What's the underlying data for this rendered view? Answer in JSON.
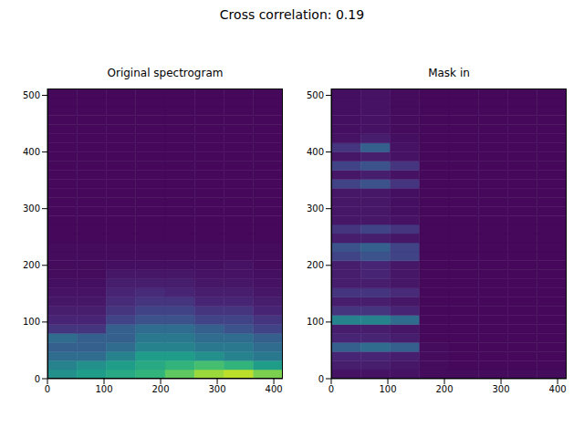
{
  "title": "Cross correlation: 0.19",
  "chart_data": [
    {
      "type": "heatmap",
      "title": "Original spectrogram",
      "xlim": [
        0,
        416
      ],
      "ylim": [
        0,
        512
      ],
      "xticks": [
        0,
        100,
        200,
        300,
        400
      ],
      "yticks": [
        0,
        100,
        200,
        300,
        400,
        500
      ],
      "x_edges": [
        0,
        52,
        104,
        156,
        208,
        260,
        312,
        364,
        416
      ],
      "y_edges": [
        0,
        16,
        32,
        48,
        64,
        80,
        96,
        112,
        128,
        144,
        160,
        176,
        192,
        208,
        224,
        240,
        256,
        272,
        288,
        304,
        320,
        336,
        352,
        368,
        384,
        400,
        416,
        432,
        448,
        464,
        480,
        496,
        512
      ],
      "cells": [
        [
          0.5,
          0.55,
          0.6,
          0.65,
          0.75,
          0.85,
          0.9,
          0.8
        ],
        [
          0.45,
          0.5,
          0.55,
          0.6,
          0.65,
          0.7,
          0.65,
          0.55
        ],
        [
          0.35,
          0.35,
          0.45,
          0.55,
          0.55,
          0.5,
          0.45,
          0.4
        ],
        [
          0.3,
          0.3,
          0.35,
          0.45,
          0.45,
          0.4,
          0.4,
          0.35
        ],
        [
          0.35,
          0.3,
          0.3,
          0.4,
          0.4,
          0.35,
          0.35,
          0.3
        ],
        [
          0.15,
          0.15,
          0.3,
          0.35,
          0.35,
          0.3,
          0.25,
          0.2
        ],
        [
          0.1,
          0.1,
          0.2,
          0.25,
          0.25,
          0.2,
          0.2,
          0.15
        ],
        [
          0.08,
          0.08,
          0.15,
          0.2,
          0.2,
          0.15,
          0.15,
          0.1
        ],
        [
          0.06,
          0.06,
          0.12,
          0.15,
          0.15,
          0.1,
          0.1,
          0.08
        ],
        [
          0.05,
          0.05,
          0.1,
          0.12,
          0.1,
          0.08,
          0.08,
          0.06
        ],
        [
          0.04,
          0.04,
          0.08,
          0.08,
          0.08,
          0.06,
          0.06,
          0.05
        ],
        [
          0.03,
          0.03,
          0.06,
          0.06,
          0.06,
          0.05,
          0.05,
          0.04
        ],
        [
          0.03,
          0.03,
          0.04,
          0.04,
          0.04,
          0.04,
          0.05,
          0.03
        ],
        [
          0.03,
          0.03,
          0.03,
          0.03,
          0.03,
          0.03,
          0.03,
          0.03
        ],
        [
          0.03,
          0.03,
          0.03,
          0.03,
          0.03,
          0.03,
          0.03,
          0.03
        ],
        [
          0.02,
          0.02,
          0.02,
          0.02,
          0.02,
          0.02,
          0.02,
          0.02
        ],
        [
          0.02,
          0.02,
          0.02,
          0.02,
          0.02,
          0.02,
          0.02,
          0.02
        ],
        [
          0.02,
          0.02,
          0.02,
          0.02,
          0.02,
          0.02,
          0.02,
          0.02
        ],
        [
          0.02,
          0.02,
          0.02,
          0.02,
          0.02,
          0.02,
          0.02,
          0.02
        ],
        [
          0.02,
          0.02,
          0.02,
          0.02,
          0.02,
          0.02,
          0.02,
          0.02
        ],
        [
          0.02,
          0.02,
          0.02,
          0.02,
          0.02,
          0.02,
          0.02,
          0.02
        ],
        [
          0.02,
          0.02,
          0.02,
          0.02,
          0.02,
          0.02,
          0.02,
          0.02
        ],
        [
          0.02,
          0.02,
          0.02,
          0.02,
          0.02,
          0.02,
          0.02,
          0.02
        ],
        [
          0.02,
          0.02,
          0.02,
          0.02,
          0.02,
          0.02,
          0.02,
          0.02
        ],
        [
          0.02,
          0.02,
          0.02,
          0.02,
          0.02,
          0.02,
          0.02,
          0.02
        ],
        [
          0.02,
          0.02,
          0.02,
          0.02,
          0.02,
          0.02,
          0.02,
          0.02
        ],
        [
          0.02,
          0.02,
          0.02,
          0.02,
          0.02,
          0.02,
          0.02,
          0.02
        ],
        [
          0.02,
          0.02,
          0.02,
          0.02,
          0.02,
          0.02,
          0.02,
          0.02
        ],
        [
          0.02,
          0.02,
          0.02,
          0.02,
          0.02,
          0.02,
          0.02,
          0.02
        ],
        [
          0.02,
          0.02,
          0.02,
          0.02,
          0.02,
          0.02,
          0.02,
          0.02
        ],
        [
          0.02,
          0.02,
          0.02,
          0.02,
          0.02,
          0.02,
          0.02,
          0.02
        ],
        [
          0.02,
          0.02,
          0.02,
          0.02,
          0.02,
          0.02,
          0.02,
          0.02
        ]
      ]
    },
    {
      "type": "heatmap",
      "title": "Mask in",
      "xlim": [
        0,
        416
      ],
      "ylim": [
        0,
        512
      ],
      "xticks": [
        0,
        100,
        200,
        300,
        400
      ],
      "yticks": [
        0,
        100,
        200,
        300,
        400,
        500
      ],
      "x_edges": [
        0,
        52,
        104,
        156,
        208,
        260,
        312,
        364,
        416
      ],
      "y_edges": [
        0,
        16,
        32,
        48,
        64,
        80,
        96,
        112,
        128,
        144,
        160,
        176,
        192,
        208,
        224,
        240,
        256,
        272,
        288,
        304,
        320,
        336,
        352,
        368,
        384,
        400,
        416,
        432,
        448,
        464,
        480,
        496,
        512
      ],
      "cells": [
        [
          0.05,
          0.05,
          0.05,
          0.03,
          0.03,
          0.03,
          0.03,
          0.03
        ],
        [
          0.08,
          0.08,
          0.06,
          0.03,
          0.02,
          0.02,
          0.02,
          0.02
        ],
        [
          0.1,
          0.1,
          0.08,
          0.03,
          0.02,
          0.02,
          0.02,
          0.02
        ],
        [
          0.3,
          0.35,
          0.3,
          0.03,
          0.02,
          0.02,
          0.02,
          0.02
        ],
        [
          0.1,
          0.1,
          0.08,
          0.02,
          0.02,
          0.02,
          0.02,
          0.02
        ],
        [
          0.08,
          0.08,
          0.06,
          0.02,
          0.02,
          0.02,
          0.02,
          0.02
        ],
        [
          0.45,
          0.45,
          0.35,
          0.02,
          0.02,
          0.02,
          0.02,
          0.02
        ],
        [
          0.15,
          0.15,
          0.1,
          0.02,
          0.02,
          0.02,
          0.02,
          0.02
        ],
        [
          0.08,
          0.08,
          0.06,
          0.02,
          0.02,
          0.02,
          0.02,
          0.02
        ],
        [
          0.15,
          0.15,
          0.12,
          0.02,
          0.02,
          0.02,
          0.02,
          0.02
        ],
        [
          0.08,
          0.08,
          0.06,
          0.02,
          0.02,
          0.02,
          0.02,
          0.02
        ],
        [
          0.08,
          0.1,
          0.06,
          0.02,
          0.02,
          0.02,
          0.02,
          0.02
        ],
        [
          0.08,
          0.1,
          0.06,
          0.02,
          0.02,
          0.02,
          0.02,
          0.02
        ],
        [
          0.2,
          0.25,
          0.2,
          0.02,
          0.02,
          0.02,
          0.02,
          0.02
        ],
        [
          0.25,
          0.3,
          0.2,
          0.02,
          0.02,
          0.02,
          0.02,
          0.02
        ],
        [
          0.08,
          0.08,
          0.06,
          0.02,
          0.02,
          0.02,
          0.02,
          0.02
        ],
        [
          0.15,
          0.2,
          0.15,
          0.02,
          0.02,
          0.02,
          0.02,
          0.02
        ],
        [
          0.06,
          0.06,
          0.05,
          0.02,
          0.02,
          0.02,
          0.02,
          0.02
        ],
        [
          0.06,
          0.06,
          0.04,
          0.02,
          0.02,
          0.02,
          0.02,
          0.02
        ],
        [
          0.06,
          0.06,
          0.04,
          0.02,
          0.02,
          0.02,
          0.02,
          0.02
        ],
        [
          0.06,
          0.06,
          0.04,
          0.02,
          0.02,
          0.02,
          0.02,
          0.02
        ],
        [
          0.2,
          0.25,
          0.15,
          0.02,
          0.02,
          0.02,
          0.02,
          0.02
        ],
        [
          0.06,
          0.08,
          0.05,
          0.02,
          0.02,
          0.02,
          0.02,
          0.02
        ],
        [
          0.2,
          0.25,
          0.15,
          0.02,
          0.02,
          0.02,
          0.02,
          0.02
        ],
        [
          0.06,
          0.08,
          0.05,
          0.02,
          0.02,
          0.02,
          0.02,
          0.02
        ],
        [
          0.15,
          0.3,
          0.05,
          0.02,
          0.02,
          0.02,
          0.02,
          0.02
        ],
        [
          0.05,
          0.08,
          0.04,
          0.02,
          0.02,
          0.02,
          0.02,
          0.02
        ],
        [
          0.04,
          0.05,
          0.03,
          0.02,
          0.02,
          0.02,
          0.02,
          0.02
        ],
        [
          0.04,
          0.05,
          0.03,
          0.02,
          0.02,
          0.02,
          0.02,
          0.02
        ],
        [
          0.04,
          0.05,
          0.03,
          0.02,
          0.02,
          0.02,
          0.02,
          0.02
        ],
        [
          0.04,
          0.05,
          0.03,
          0.02,
          0.02,
          0.02,
          0.02,
          0.02
        ],
        [
          0.04,
          0.05,
          0.03,
          0.02,
          0.02,
          0.02,
          0.02,
          0.02
        ]
      ]
    }
  ]
}
